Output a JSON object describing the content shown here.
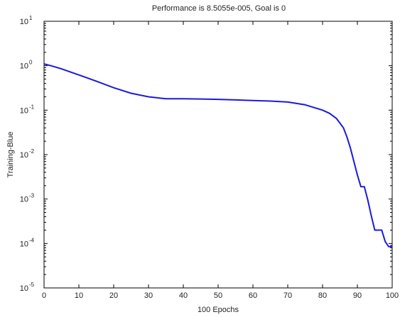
{
  "chart_data": {
    "type": "line",
    "title": "Performance is 8.5055e-005, Goal is 0",
    "xlabel": "100 Epochs",
    "ylabel": "Training-Blue",
    "xlim": [
      0,
      100
    ],
    "ylim": [
      1e-05,
      10
    ],
    "yscale": "log",
    "grid": false,
    "x_ticks": [
      "0",
      "10",
      "20",
      "30",
      "40",
      "50",
      "60",
      "70",
      "80",
      "90",
      "100"
    ],
    "y_ticks": [
      {
        "base": "10",
        "exp": "1"
      },
      {
        "base": "10",
        "exp": "0"
      },
      {
        "base": "10",
        "exp": "-1"
      },
      {
        "base": "10",
        "exp": "-2"
      },
      {
        "base": "10",
        "exp": "-3"
      },
      {
        "base": "10",
        "exp": "-4"
      },
      {
        "base": "10",
        "exp": "-5"
      }
    ],
    "series": [
      {
        "color": "#1a1adf",
        "x": [
          0,
          2,
          5,
          10,
          15,
          20,
          25,
          30,
          35,
          40,
          45,
          50,
          55,
          60,
          65,
          70,
          75,
          80,
          82,
          84,
          86,
          87,
          88,
          89,
          90,
          91,
          92,
          93,
          94,
          95,
          96,
          97,
          98,
          99,
          100
        ],
        "y": [
          1.1,
          1.0,
          0.85,
          0.62,
          0.45,
          0.32,
          0.24,
          0.2,
          0.18,
          0.18,
          0.178,
          0.175,
          0.17,
          0.165,
          0.16,
          0.152,
          0.132,
          0.1,
          0.085,
          0.065,
          0.04,
          0.025,
          0.014,
          0.007,
          0.0035,
          0.0019,
          0.0019,
          0.00095,
          0.00042,
          0.0002,
          0.0002,
          0.0002,
          0.00011,
          8.5e-05,
          8.5e-05
        ]
      }
    ]
  }
}
